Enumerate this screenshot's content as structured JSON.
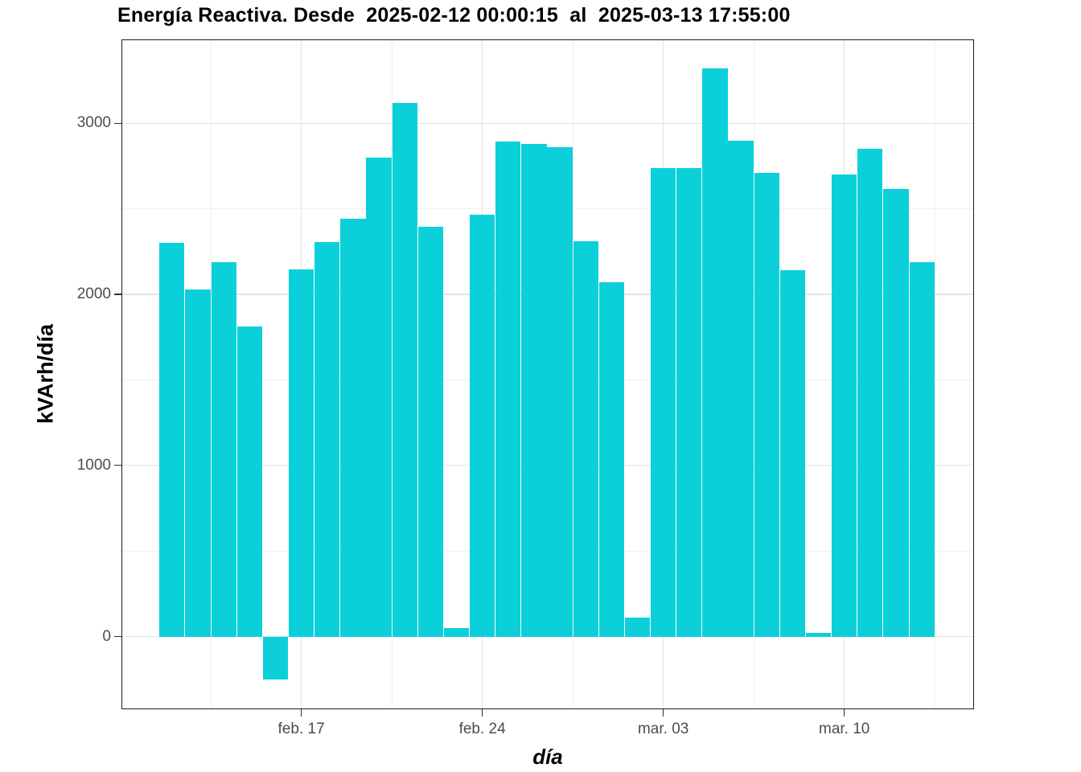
{
  "chart_data": {
    "type": "bar",
    "title": "Energía Reactiva. Desde  2025-02-12 00:00:15  al  2025-03-13 17:55:00",
    "xlabel": "día",
    "ylabel": "kVArh/día",
    "categories": [
      "2025-02-12",
      "2025-02-13",
      "2025-02-14",
      "2025-02-15",
      "2025-02-16",
      "2025-02-17",
      "2025-02-18",
      "2025-02-19",
      "2025-02-20",
      "2025-02-21",
      "2025-02-22",
      "2025-02-23",
      "2025-02-24",
      "2025-02-25",
      "2025-02-26",
      "2025-02-27",
      "2025-02-28",
      "2025-03-01",
      "2025-03-02",
      "2025-03-03",
      "2025-03-04",
      "2025-03-05",
      "2025-03-06",
      "2025-03-07",
      "2025-03-08",
      "2025-03-09",
      "2025-03-10",
      "2025-03-11",
      "2025-03-12",
      "2025-03-13"
    ],
    "values": [
      2300,
      2030,
      2190,
      1810,
      -250,
      2145,
      2305,
      2440,
      2800,
      3120,
      2395,
      50,
      2465,
      2895,
      2880,
      2860,
      2310,
      2070,
      110,
      2740,
      2740,
      3320,
      2900,
      2710,
      2140,
      20,
      2700,
      2850,
      2615,
      2190
    ],
    "ylim": [
      -425,
      3490
    ],
    "y_major_ticks": [
      0,
      1000,
      2000,
      3000
    ],
    "y_minor_ticks": [
      500,
      1500,
      2500
    ],
    "x_major_ticks": [
      {
        "day_index": 5,
        "label": "feb. 17"
      },
      {
        "day_index": 12,
        "label": "feb. 24"
      },
      {
        "day_index": 19,
        "label": "mar. 03"
      },
      {
        "day_index": 26,
        "label": "mar. 10"
      }
    ],
    "x_minor_boundaries": [
      2,
      9,
      16,
      23,
      30
    ],
    "grid": "major and minor, light gray on white panel",
    "legend": "none"
  },
  "colors": {
    "bar": "#0bd0da",
    "panel_border": "#1b1b1b",
    "grid_major": "#e3e3e3",
    "grid_minor": "#f0f0f0",
    "tick_label": "#4d4d4d",
    "text": "#000000",
    "background": "#ffffff"
  }
}
